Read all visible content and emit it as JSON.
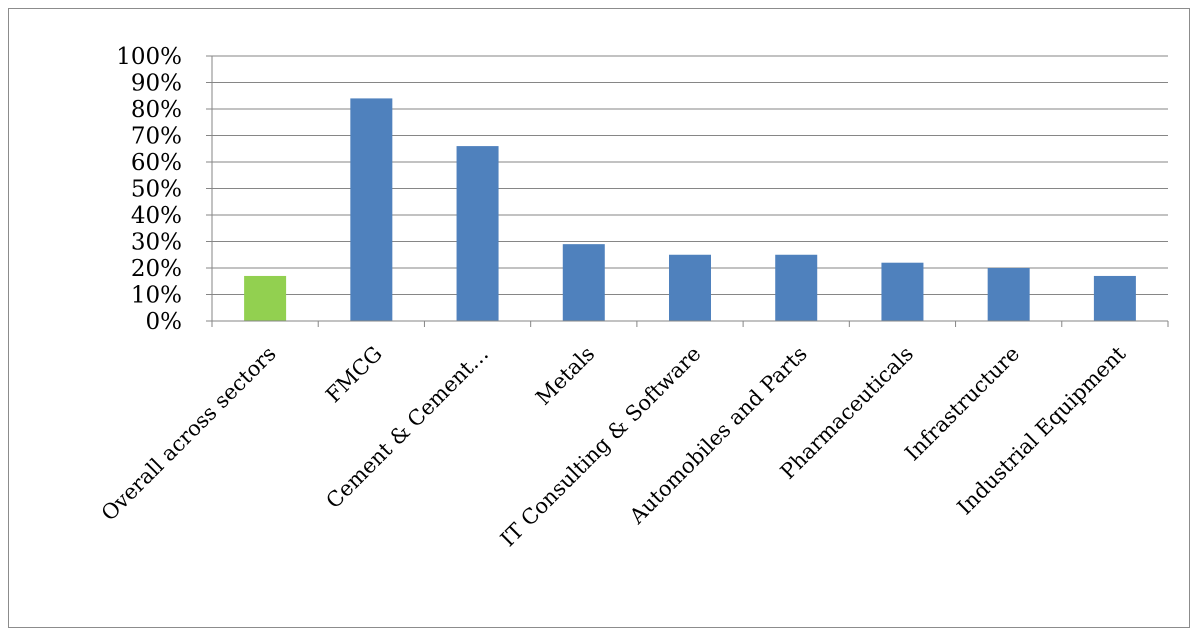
{
  "chart_data": {
    "type": "bar",
    "title": "",
    "xlabel": "",
    "ylabel": "",
    "ylim": [
      0,
      100
    ],
    "yticks": [
      "0%",
      "10%",
      "20%",
      "30%",
      "40%",
      "50%",
      "60%",
      "70%",
      "80%",
      "90%",
      "100%"
    ],
    "grid": true,
    "legend": "none",
    "categories": [
      "Overall across sectors",
      "FMCG",
      "Cement & Cement…",
      "Metals",
      "IT Consulting & Software",
      "Automobiles and Parts",
      "Pharmaceuticals",
      "Infrastructure",
      "Industrial Equipment"
    ],
    "values": [
      17,
      84,
      66,
      29,
      25,
      25,
      22,
      20,
      17
    ],
    "colors": [
      "#92D050",
      "#4F81BD",
      "#4F81BD",
      "#4F81BD",
      "#4F81BD",
      "#4F81BD",
      "#4F81BD",
      "#4F81BD",
      "#4F81BD"
    ],
    "gridColor": "#868686"
  }
}
